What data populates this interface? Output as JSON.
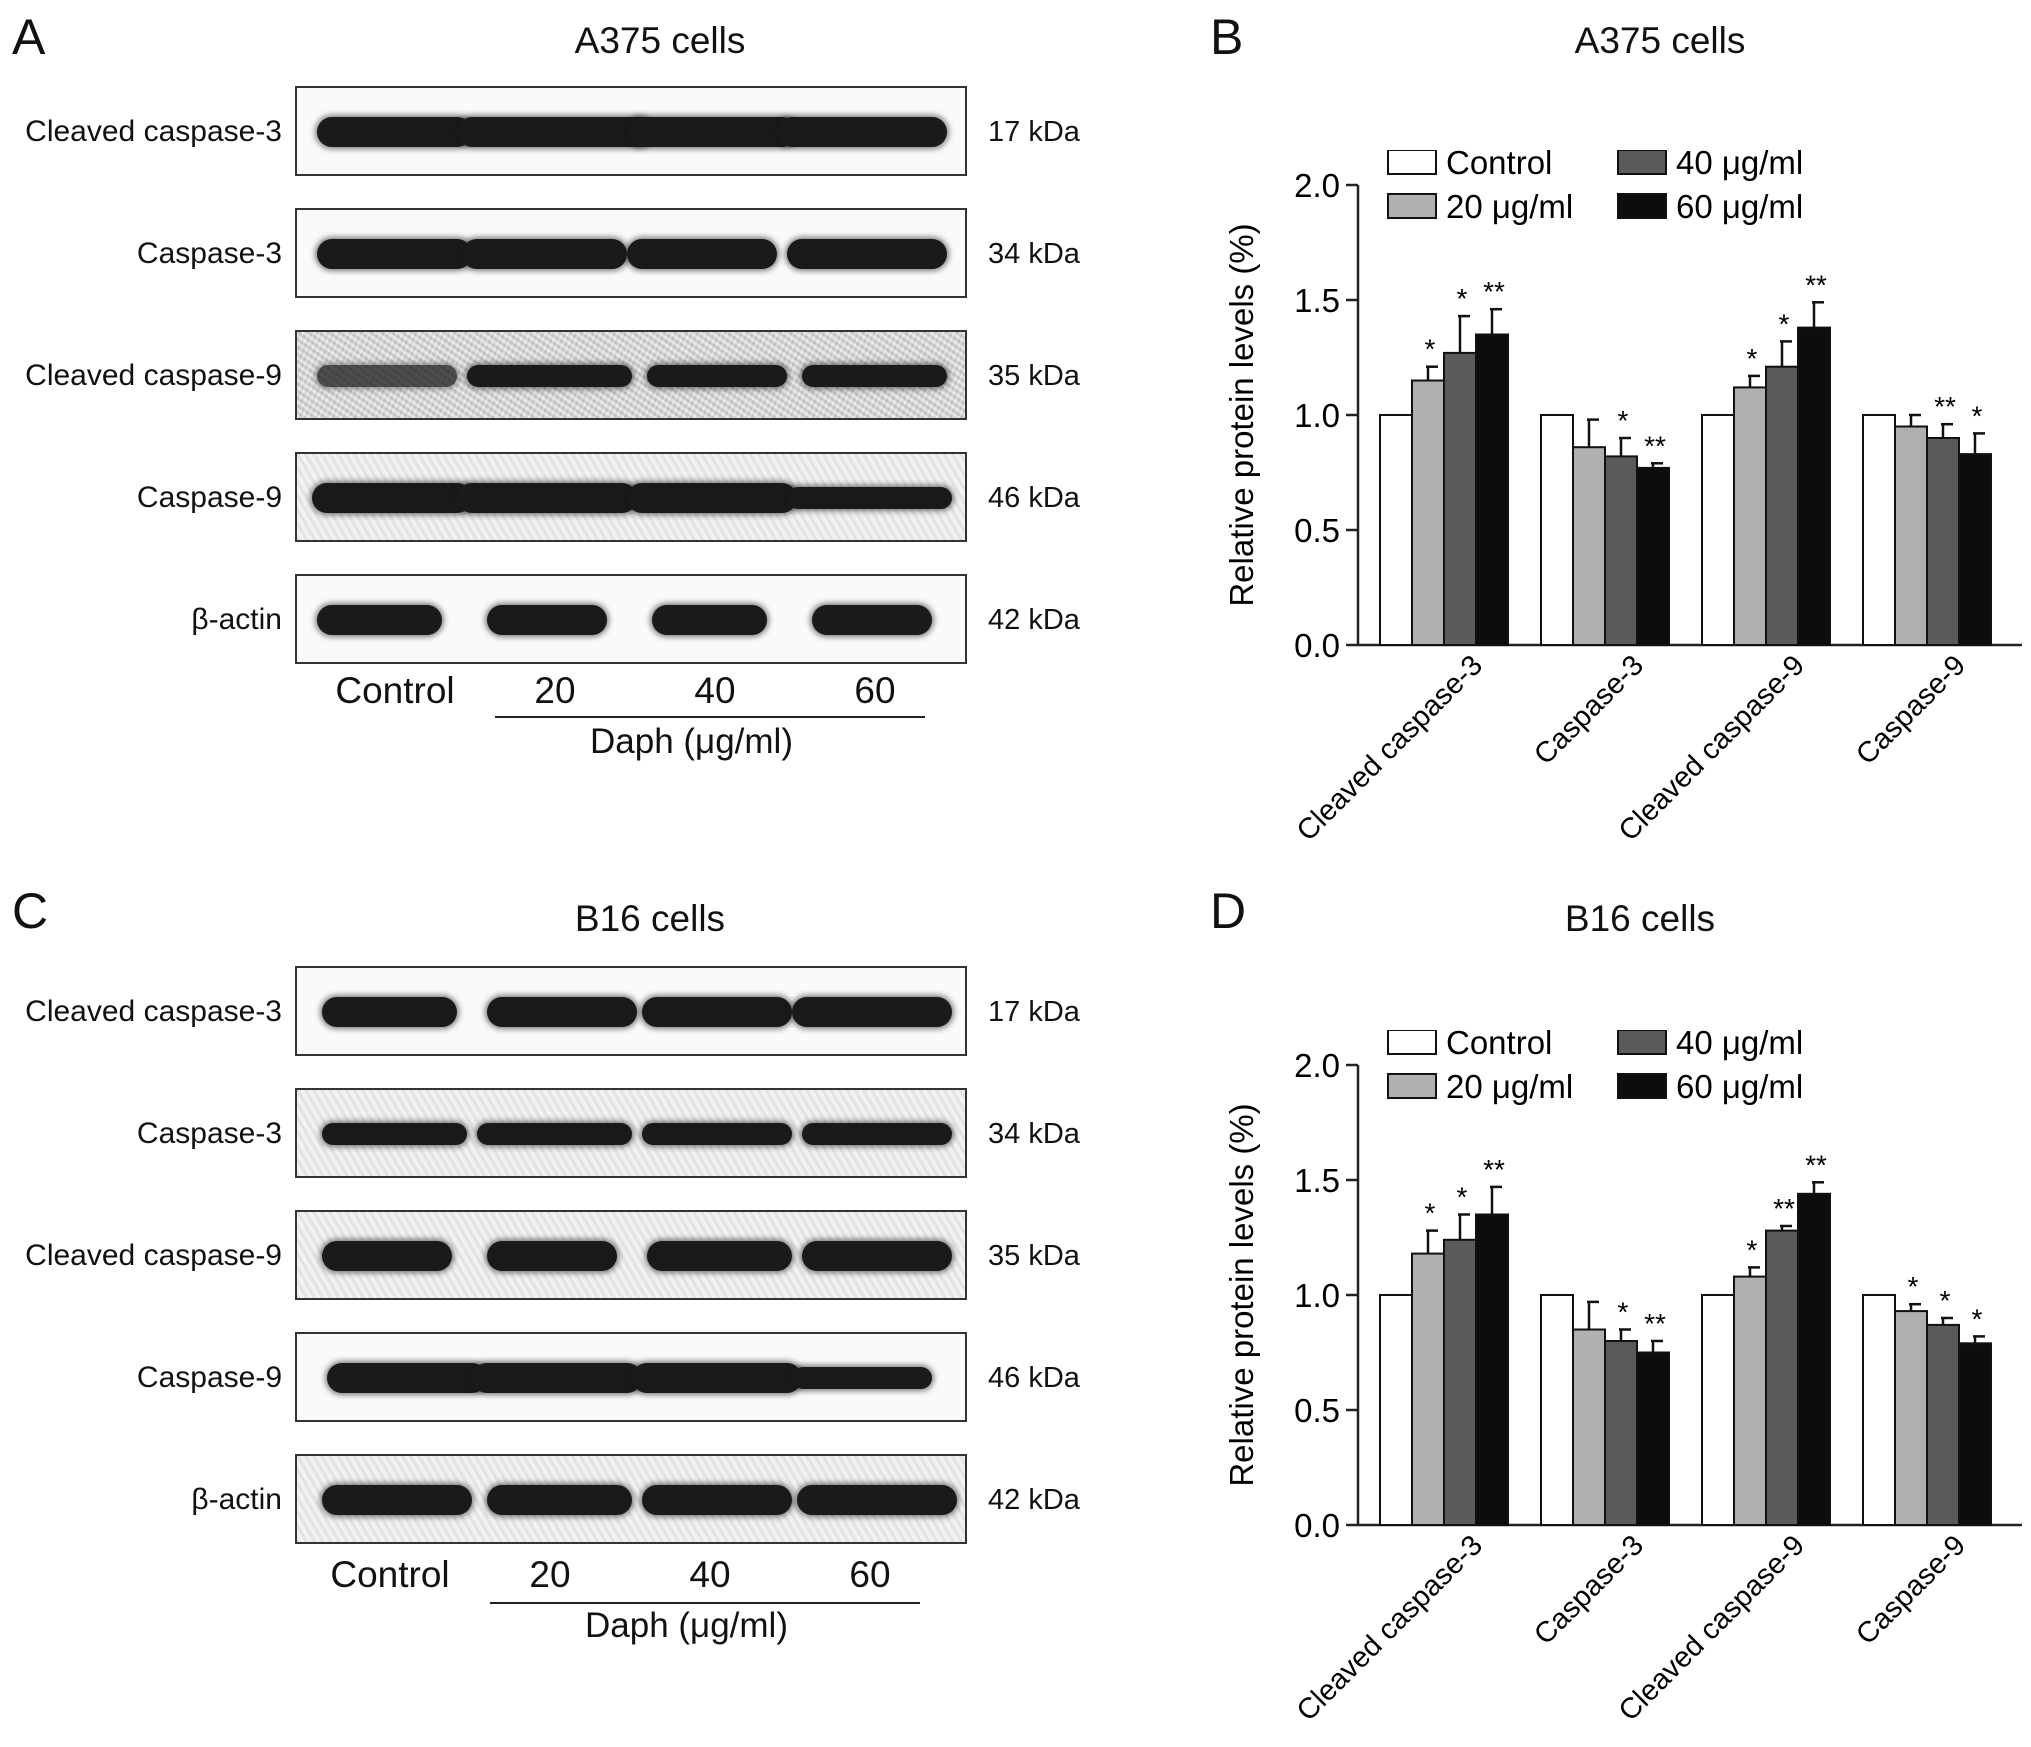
{
  "panels": {
    "A": {
      "letter": "A",
      "title": "A375 cells"
    },
    "B": {
      "letter": "B",
      "title": "A375 cells"
    },
    "C": {
      "letter": "C",
      "title": "B16 cells"
    },
    "D": {
      "letter": "D",
      "title": "B16 cells"
    }
  },
  "blots": [
    {
      "panel": "A",
      "rows": [
        {
          "label": "Cleaved caspase-3",
          "kda": "17 kDa"
        },
        {
          "label": "Caspase-3",
          "kda": "34 kDa"
        },
        {
          "label": "Cleaved caspase-9",
          "kda": "35 kDa"
        },
        {
          "label": "Caspase-9",
          "kda": "46 kDa"
        },
        {
          "label": "β-actin",
          "kda": "42 kDa"
        }
      ],
      "lanes": [
        "Control",
        "20",
        "40",
        "60"
      ],
      "treatment_label": "Daph  (μg/ml)"
    },
    {
      "panel": "C",
      "rows": [
        {
          "label": "Cleaved caspase-3",
          "kda": "17 kDa"
        },
        {
          "label": "Caspase-3",
          "kda": "34 kDa"
        },
        {
          "label": "Cleaved caspase-9",
          "kda": "35 kDa"
        },
        {
          "label": "Caspase-9",
          "kda": "46 kDa"
        },
        {
          "label": "β-actin",
          "kda": "42 kDa"
        }
      ],
      "lanes": [
        "Control",
        "20",
        "40",
        "60"
      ],
      "treatment_label": "Daph  (μg/ml)"
    }
  ],
  "chart_data": [
    {
      "type": "bar",
      "panel": "B",
      "title": "A375 cells",
      "ylabel": "Relative protein levels (%)",
      "ylim": [
        0,
        2.0
      ],
      "yticks": [
        "0.0",
        "0.5",
        "1.0",
        "1.5",
        "2.0"
      ],
      "categories": [
        "Cleaved caspase-3",
        "Caspase-3",
        "Cleaved caspase-9",
        "Caspase-9"
      ],
      "legend_position": "top",
      "series": [
        {
          "name": "Control",
          "color": "#ffffff",
          "values": [
            1.0,
            1.0,
            1.0,
            1.0
          ],
          "errors": [
            0,
            0,
            0,
            0
          ],
          "sig": [
            "",
            "",
            "",
            ""
          ]
        },
        {
          "name": "20 μg/ml",
          "color": "#b0b0b0",
          "values": [
            1.15,
            0.86,
            1.12,
            0.95
          ],
          "errors": [
            0.06,
            0.12,
            0.05,
            0.05
          ],
          "sig": [
            "*",
            "",
            "*",
            ""
          ]
        },
        {
          "name": "40 μg/ml",
          "color": "#5a5a5a",
          "values": [
            1.27,
            0.82,
            1.21,
            0.9
          ],
          "errors": [
            0.16,
            0.08,
            0.11,
            0.06
          ],
          "sig": [
            "*",
            "*",
            "*",
            "**"
          ]
        },
        {
          "name": "60 μg/ml",
          "color": "#0d0d0d",
          "values": [
            1.35,
            0.77,
            1.38,
            0.83
          ],
          "errors": [
            0.11,
            0.02,
            0.11,
            0.09
          ],
          "sig": [
            "**",
            "**",
            "**",
            "*"
          ]
        }
      ]
    },
    {
      "type": "bar",
      "panel": "D",
      "title": "B16 cells",
      "ylabel": "Relative protein levels (%)",
      "ylim": [
        0,
        2.0
      ],
      "yticks": [
        "0.0",
        "0.5",
        "1.0",
        "1.5",
        "2.0"
      ],
      "categories": [
        "Cleaved caspase-3",
        "Caspase-3",
        "Cleaved caspase-9",
        "Caspase-9"
      ],
      "legend_position": "top",
      "series": [
        {
          "name": "Control",
          "color": "#ffffff",
          "values": [
            1.0,
            1.0,
            1.0,
            1.0
          ],
          "errors": [
            0,
            0,
            0,
            0
          ],
          "sig": [
            "",
            "",
            "",
            ""
          ]
        },
        {
          "name": "20 μg/ml",
          "color": "#b0b0b0",
          "values": [
            1.18,
            0.85,
            1.08,
            0.93
          ],
          "errors": [
            0.1,
            0.12,
            0.04,
            0.03
          ],
          "sig": [
            "*",
            "",
            "*",
            "*"
          ]
        },
        {
          "name": "40 μg/ml",
          "color": "#5a5a5a",
          "values": [
            1.24,
            0.8,
            1.28,
            0.87
          ],
          "errors": [
            0.11,
            0.05,
            0.02,
            0.03
          ],
          "sig": [
            "*",
            "*",
            "**",
            "*"
          ]
        },
        {
          "name": "60 μg/ml",
          "color": "#0d0d0d",
          "values": [
            1.35,
            0.75,
            1.44,
            0.79
          ],
          "errors": [
            0.12,
            0.05,
            0.05,
            0.03
          ],
          "sig": [
            "**",
            "**",
            "**",
            "*"
          ]
        }
      ]
    }
  ]
}
